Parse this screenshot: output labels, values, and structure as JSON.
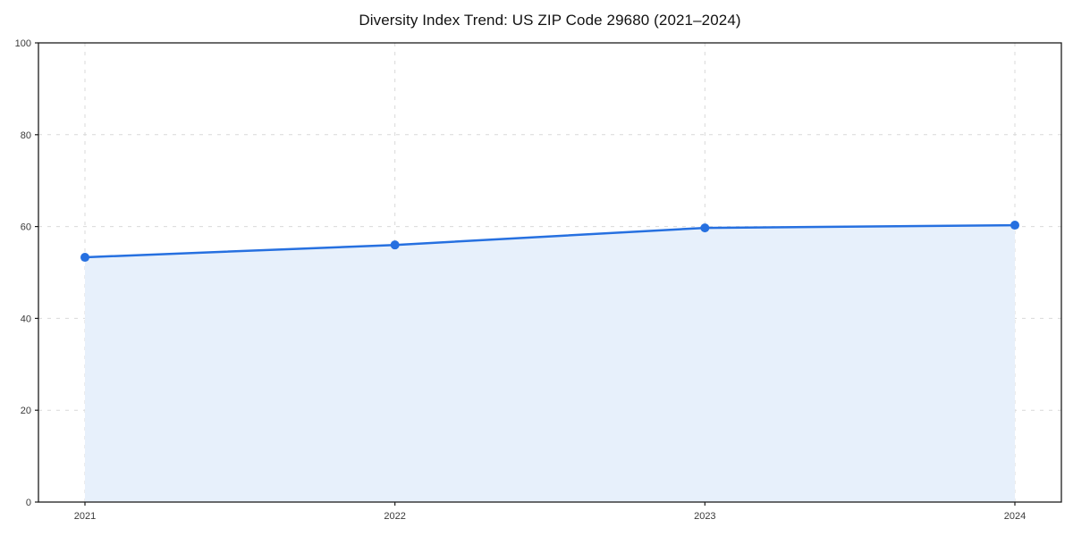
{
  "chart_data": {
    "type": "line",
    "title": "Diversity Index Trend: US ZIP Code 29680 (2021–2024)",
    "x": [
      "2021",
      "2022",
      "2023",
      "2024"
    ],
    "series": [
      {
        "name": "Diversity Index",
        "values": [
          53.3,
          56.0,
          59.7,
          60.3
        ]
      }
    ],
    "xlabel": "",
    "ylabel": "",
    "ylim": [
      0,
      100
    ],
    "yticks": [
      0,
      20,
      40,
      60,
      80,
      100
    ],
    "grid": true,
    "grid_style": "dashed",
    "legend_position": "none",
    "area_fill": true,
    "marker": "circle",
    "colors": {
      "line": "#2670e0",
      "marker": "#2670e0",
      "fill": "#e7f0fb",
      "grid": "#d9d9d9",
      "axis": "#1c1c1c",
      "tick_label": "#3a3a3a",
      "title": "#121212",
      "background": "#ffffff"
    }
  }
}
